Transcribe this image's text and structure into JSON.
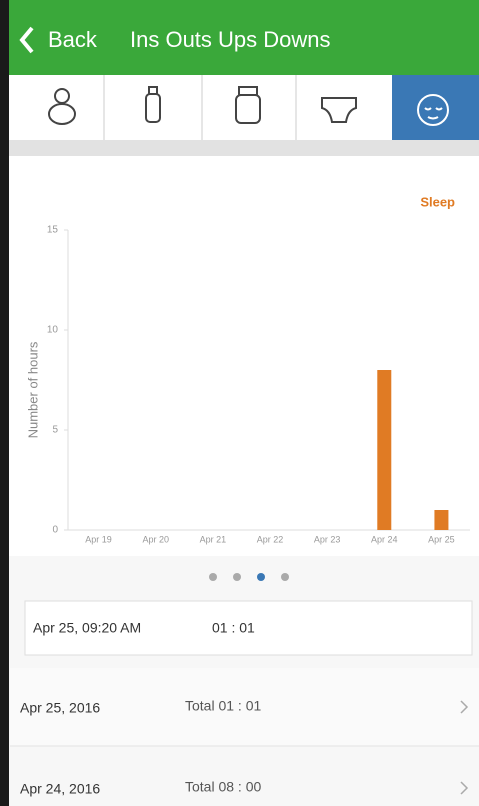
{
  "header": {
    "back": "Back",
    "title": "Ins Outs Ups Downs"
  },
  "chart_data": {
    "type": "bar",
    "ylabel": "Number of hours",
    "categories": [
      "Apr 19",
      "Apr 20",
      "Apr 21",
      "Apr 22",
      "Apr 23",
      "Apr 24",
      "Apr 25"
    ],
    "series": [
      {
        "name": "Sleep",
        "color": "#e07b24",
        "values": [
          0,
          0,
          0,
          0,
          0,
          8,
          1
        ]
      }
    ],
    "ylim": [
      0,
      15
    ],
    "yticks": [
      0,
      5,
      10,
      15
    ],
    "grid": false
  },
  "detail": {
    "time": "Apr 25, 09:20 AM",
    "duration": "01 : 01"
  },
  "rows": [
    {
      "date": "Apr 25, 2016",
      "total": "Total 01 : 01"
    },
    {
      "date": "Apr 24, 2016",
      "total": "Total 08 : 00"
    }
  ]
}
